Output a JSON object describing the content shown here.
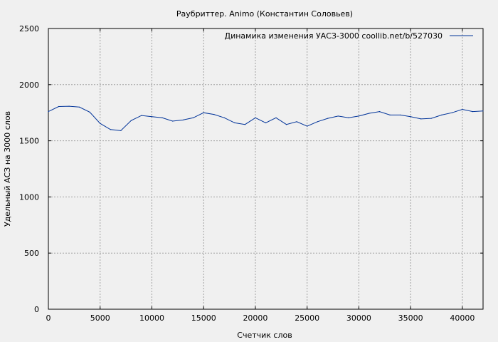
{
  "chart_data": {
    "type": "line",
    "title": "Раубриттер. Animo (Константин Соловьев)",
    "xlabel": "Счетчик слов",
    "ylabel": "Удельный АСЗ на 3000 слов",
    "xlim": [
      0,
      42000
    ],
    "ylim": [
      0,
      2500
    ],
    "xticks": [
      0,
      5000,
      10000,
      15000,
      20000,
      25000,
      30000,
      35000,
      40000
    ],
    "yticks": [
      0,
      500,
      1000,
      1500,
      2000,
      2500
    ],
    "grid": true,
    "legend_position": "top-right",
    "series": [
      {
        "name": "Динамика изменения УАСЗ-3000  coollib.net/b/527030",
        "color": "#003399",
        "x": [
          0,
          1000,
          2000,
          3000,
          4000,
          5000,
          6000,
          7000,
          8000,
          9000,
          10000,
          11000,
          12000,
          13000,
          14000,
          15000,
          16000,
          17000,
          18000,
          19000,
          20000,
          21000,
          22000,
          23000,
          24000,
          25000,
          26000,
          27000,
          28000,
          29000,
          30000,
          31000,
          32000,
          33000,
          34000,
          35000,
          36000,
          37000,
          38000,
          39000,
          40000,
          41000,
          42000
        ],
        "y": [
          1760,
          1805,
          1808,
          1800,
          1755,
          1655,
          1600,
          1590,
          1680,
          1725,
          1715,
          1705,
          1675,
          1685,
          1705,
          1750,
          1735,
          1705,
          1660,
          1645,
          1705,
          1660,
          1705,
          1645,
          1670,
          1630,
          1670,
          1700,
          1720,
          1705,
          1720,
          1745,
          1760,
          1730,
          1730,
          1715,
          1695,
          1700,
          1730,
          1750,
          1780,
          1760,
          1765
        ]
      }
    ]
  }
}
